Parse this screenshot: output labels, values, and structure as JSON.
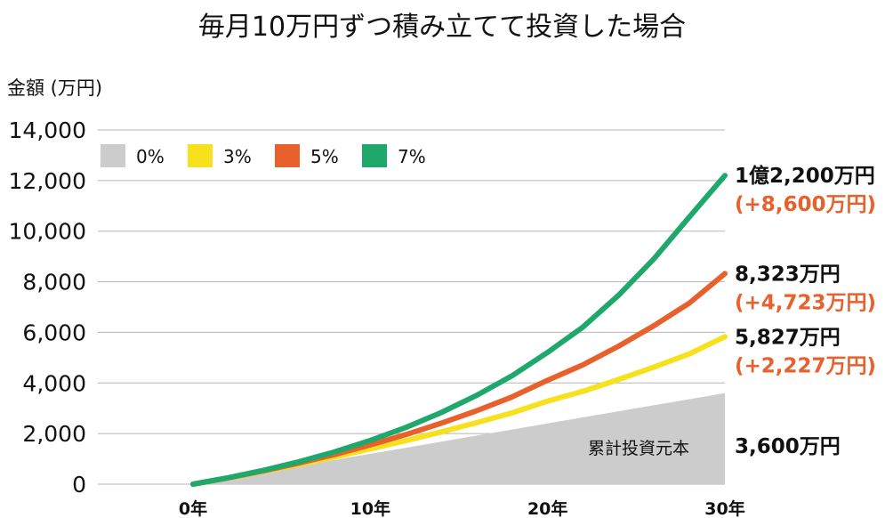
{
  "chart_data": {
    "type": "line",
    "title": "毎月10万円ずつ積み立てて投資した場合",
    "ylabel": "金額 (万円)",
    "xlabel": "",
    "x": [
      0,
      2,
      4,
      6,
      8,
      10,
      12,
      14,
      16,
      18,
      20,
      22,
      24,
      26,
      28,
      30
    ],
    "x_ticks": [
      {
        "value": 0,
        "label": "0年"
      },
      {
        "value": 10,
        "label": "10年"
      },
      {
        "value": 20,
        "label": "20年"
      },
      {
        "value": 30,
        "label": "30年"
      }
    ],
    "y_ticks": [
      {
        "value": 0,
        "label": "0"
      },
      {
        "value": 2000,
        "label": "2,000"
      },
      {
        "value": 4000,
        "label": "4,000"
      },
      {
        "value": 6000,
        "label": "6,000"
      },
      {
        "value": 8000,
        "label": "8,000"
      },
      {
        "value": 10000,
        "label": "10,000"
      },
      {
        "value": 12000,
        "label": "12,000"
      },
      {
        "value": 14000,
        "label": "14,000"
      }
    ],
    "ylim": [
      0,
      14000
    ],
    "xlim": [
      0,
      30
    ],
    "grid": true,
    "legend_position": "top-left",
    "series": [
      {
        "name": "0%",
        "color": "#cccccc",
        "kind": "area",
        "values": [
          0,
          240,
          480,
          720,
          960,
          1200,
          1440,
          1680,
          1920,
          2160,
          2400,
          2640,
          2880,
          3120,
          3360,
          3600
        ],
        "area_label": "累計投資元本",
        "end_value": "3,600万円",
        "end_gain": ""
      },
      {
        "name": "3%",
        "color": "#f7e01c",
        "kind": "line",
        "values": [
          0,
          247,
          509,
          786,
          1080,
          1397,
          1720,
          2065,
          2431,
          2819,
          3283,
          3673,
          4136,
          4628,
          5150,
          5827
        ],
        "end_value": "5,827万円",
        "end_gain": "(+2,227万円)"
      },
      {
        "name": "5%",
        "color": "#e8612c",
        "kind": "line",
        "values": [
          0,
          252,
          530,
          837,
          1175,
          1553,
          1959,
          2408,
          2903,
          3449,
          4110,
          4717,
          5453,
          6264,
          7158,
          8323
        ],
        "end_value": "8,323万円",
        "end_gain": "(+4,723万円)"
      },
      {
        "name": "7%",
        "color": "#1fa86b",
        "kind": "line",
        "values": [
          0,
          257,
          552,
          891,
          1280,
          1731,
          2241,
          2832,
          3510,
          4289,
          5209,
          6212,
          7466,
          8909,
          10565,
          12200
        ],
        "end_value": "1億2,200万円",
        "end_gain": "(+8,600万円)"
      }
    ]
  }
}
